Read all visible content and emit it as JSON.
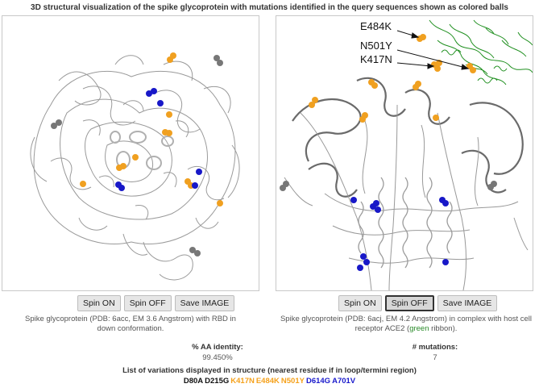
{
  "title": "3D structural visualization of the spike glycoprotein with mutations identified in the query sequences shown as colored balls",
  "left_viewer": {
    "buttons": {
      "spin_on": "Spin ON",
      "spin_off": "Spin OFF",
      "save": "Save IMAGE"
    },
    "caption": "Spike glycoprotein (PDB: 6acc, EM 3.6 Angstrom) with RBD in down conformation."
  },
  "right_viewer": {
    "buttons": {
      "spin_on": "Spin ON",
      "spin_off": "Spin OFF",
      "save": "Save IMAGE"
    },
    "caption_a": "Spike glycoprotein (PDB: 6acj, EM 4.2 Angstrom) in complex with host cell receptor ACE2 (",
    "caption_green": "green",
    "caption_b": " ribbon).",
    "labels": {
      "e484k": "E484K",
      "n501y": "N501Y",
      "k417n": "K417N"
    }
  },
  "stats": {
    "identity_label": "% AA identity:",
    "identity_value": "99.450%",
    "mutations_label": "# mutations:",
    "mutations_value": "7"
  },
  "variations_title": "List of variations displayed in structure (nearest residue if in loop/termini region)",
  "mutations": [
    {
      "name": "D80A",
      "color": "#111111"
    },
    {
      "name": "D215G",
      "color": "#111111"
    },
    {
      "name": "K417N",
      "color": "#f5a11b"
    },
    {
      "name": "E484K",
      "color": "#f5a11b"
    },
    {
      "name": "N501Y",
      "color": "#f5a11b"
    },
    {
      "name": "D614G",
      "color": "#1a1acc"
    },
    {
      "name": "A701V",
      "color": "#1a1acc"
    }
  ],
  "colors": {
    "orange": "#f0a020",
    "blue": "#1818c8",
    "gray": "#777777",
    "green": "#1f8f1f"
  }
}
